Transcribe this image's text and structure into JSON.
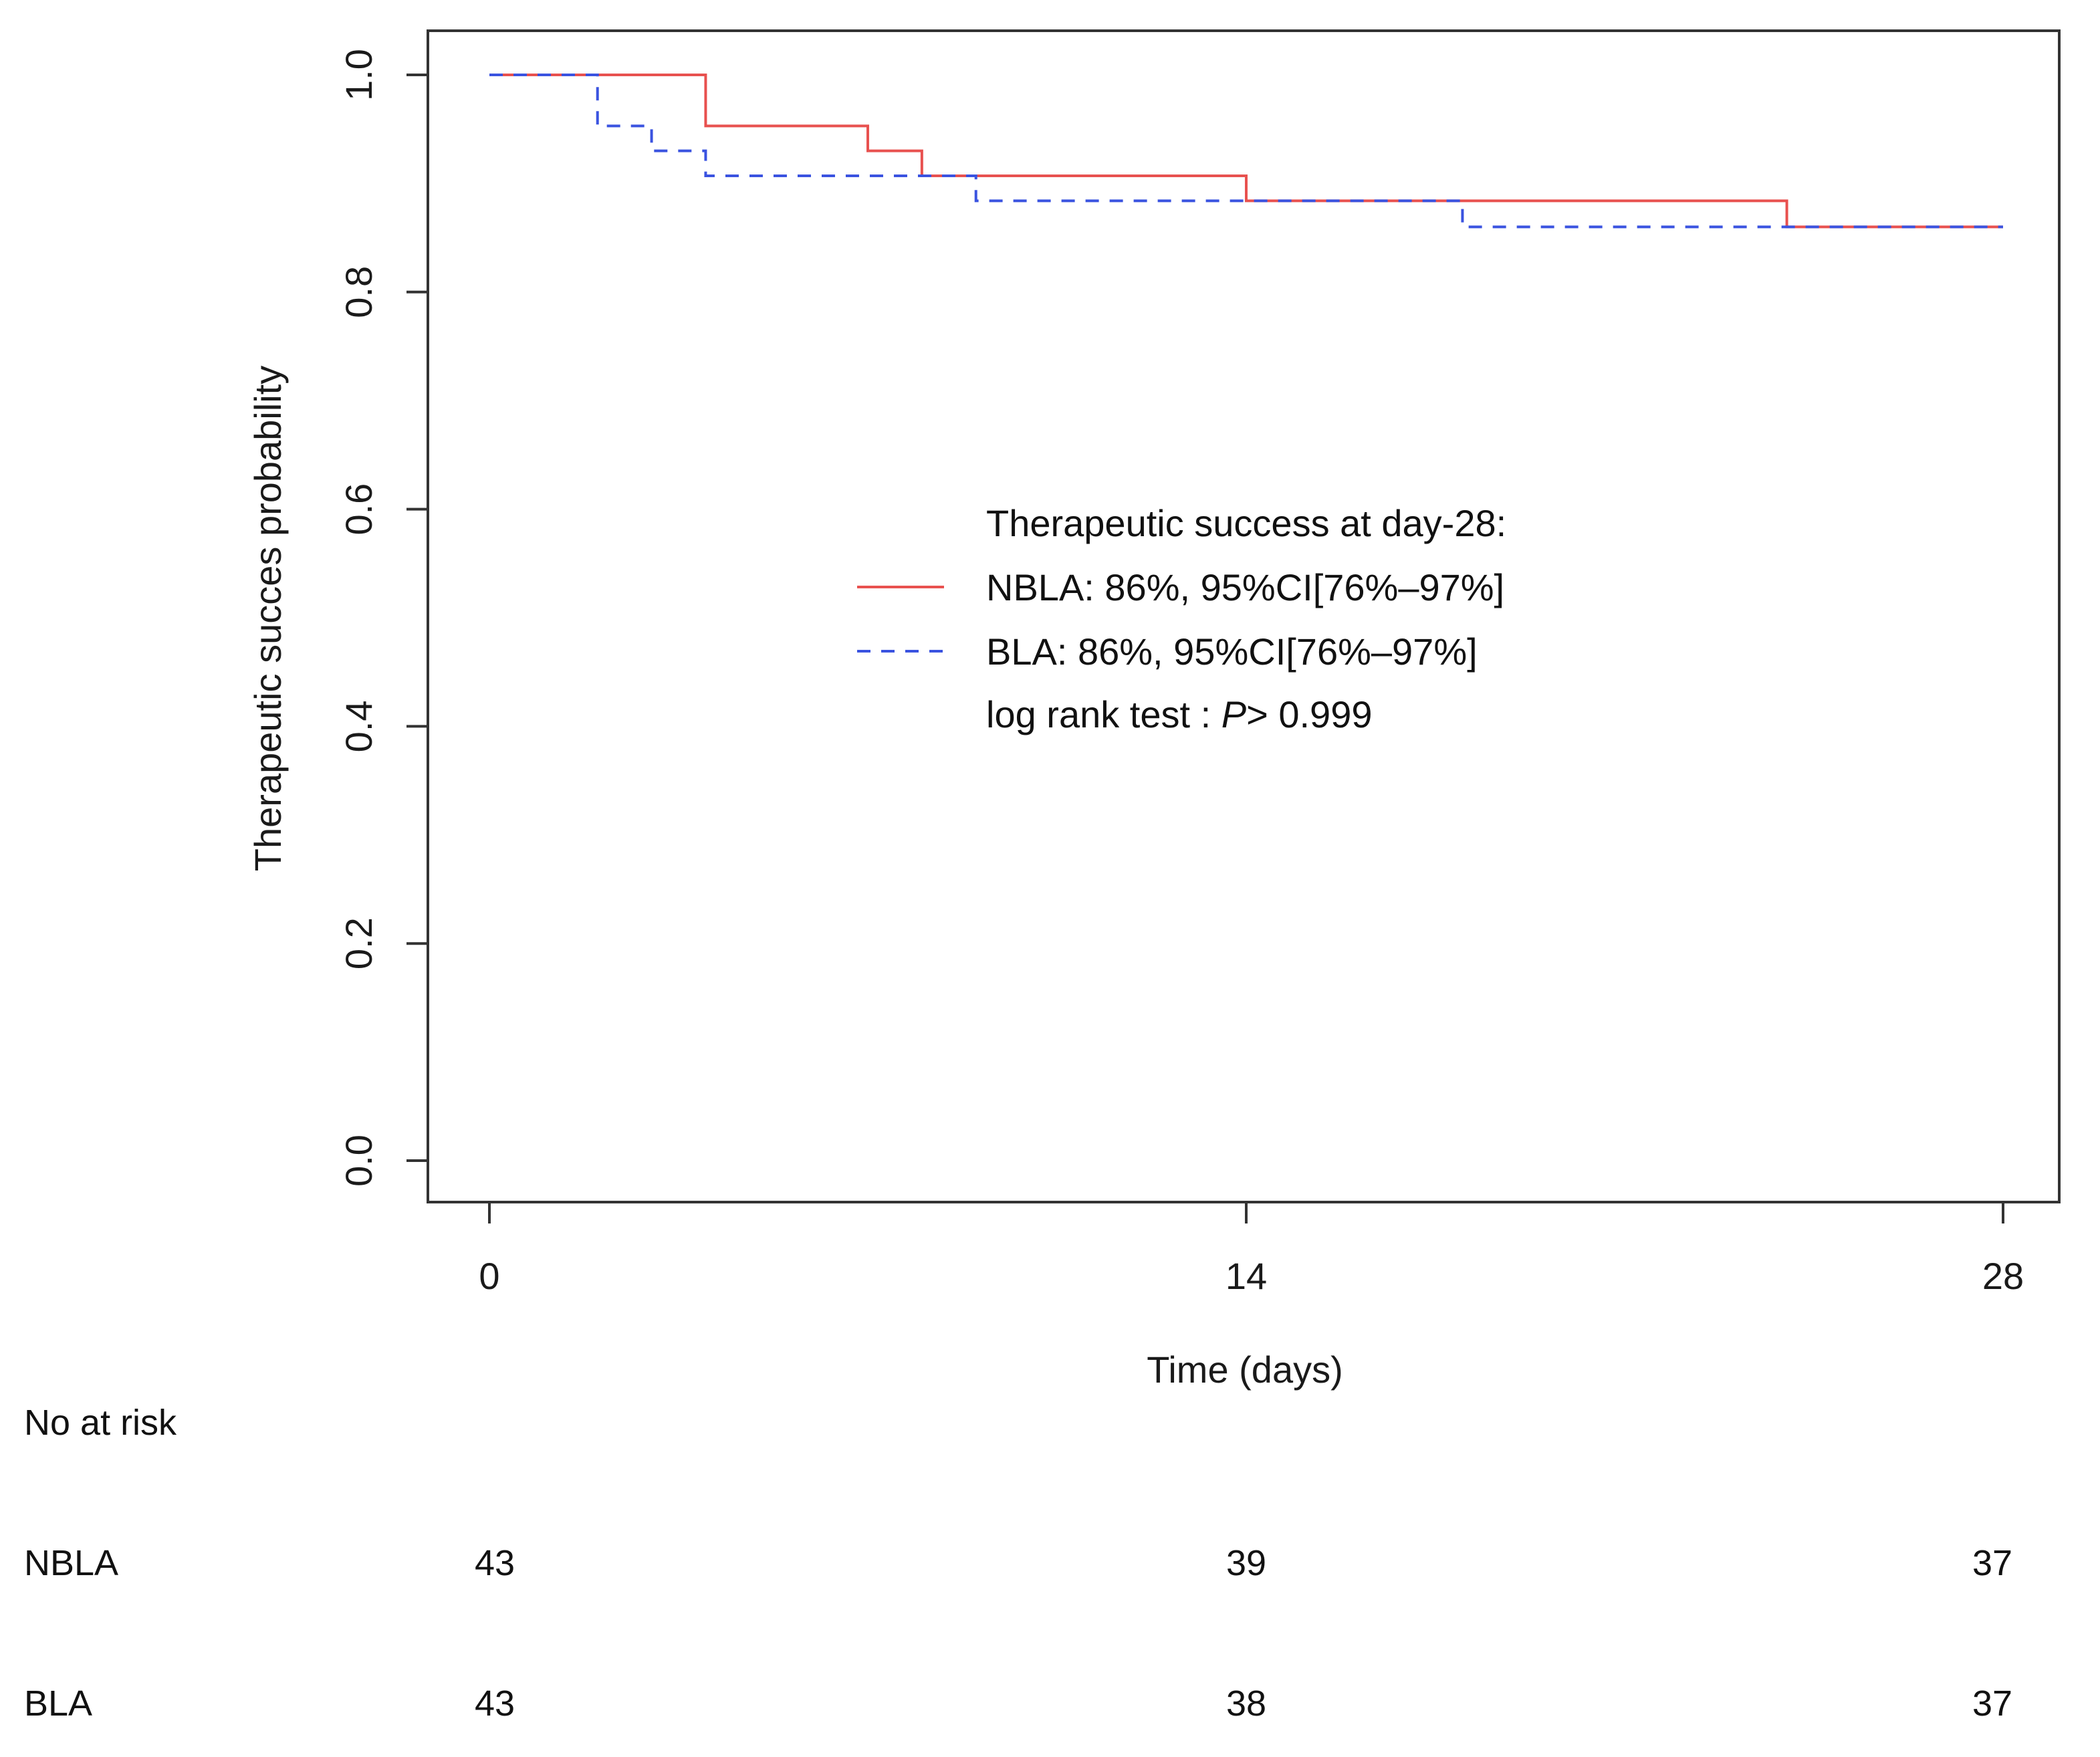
{
  "chart_data": {
    "type": "line",
    "subtype": "kaplan-meier step",
    "xlabel": "Time (days)",
    "ylabel": "Therapeutic succes probability",
    "xlim": [
      0,
      28
    ],
    "ylim": [
      0,
      1
    ],
    "x_ticks": [
      {
        "value": 0,
        "label": "0"
      },
      {
        "value": 14,
        "label": "14"
      },
      {
        "value": 28,
        "label": "28"
      }
    ],
    "y_ticks": [
      {
        "value": 0.0,
        "label": "0.0"
      },
      {
        "value": 0.2,
        "label": "0.2"
      },
      {
        "value": 0.4,
        "label": "0.4"
      },
      {
        "value": 0.6,
        "label": "0.6"
      },
      {
        "value": 0.8,
        "label": "0.8"
      },
      {
        "value": 1.0,
        "label": "1.0"
      }
    ],
    "series": [
      {
        "name": "NBLA",
        "color": "#e8514f",
        "dash": "solid",
        "x": [
          0,
          4,
          7,
          8,
          14,
          24,
          28
        ],
        "y": [
          1.0,
          0.953,
          0.93,
          0.907,
          0.884,
          0.86,
          0.86
        ]
      },
      {
        "name": "BLA",
        "color": "#3a53e0",
        "dash": "dashed",
        "x": [
          0,
          2,
          3,
          4,
          9,
          18,
          28
        ],
        "y": [
          1.0,
          0.953,
          0.93,
          0.907,
          0.884,
          0.86,
          0.86
        ]
      }
    ],
    "legend": {
      "position": "center",
      "title": "Therapeutic success at day-28:",
      "entries": [
        {
          "series": "NBLA",
          "label": "NBLA: 86%, 95%CI[76%–97%]"
        },
        {
          "series": "BLA",
          "label": "BLA: 86%, 95%CI[76%–97%]"
        }
      ],
      "test_prefix": "log rank test : ",
      "test_p_symbol": "P",
      "test_value": "> 0.999"
    },
    "risk_table": {
      "title": "No at risk",
      "rows": [
        {
          "label": "NBLA",
          "values": [
            "43",
            "39",
            "37"
          ]
        },
        {
          "label": "BLA",
          "values": [
            "43",
            "38",
            "37"
          ]
        }
      ]
    }
  }
}
